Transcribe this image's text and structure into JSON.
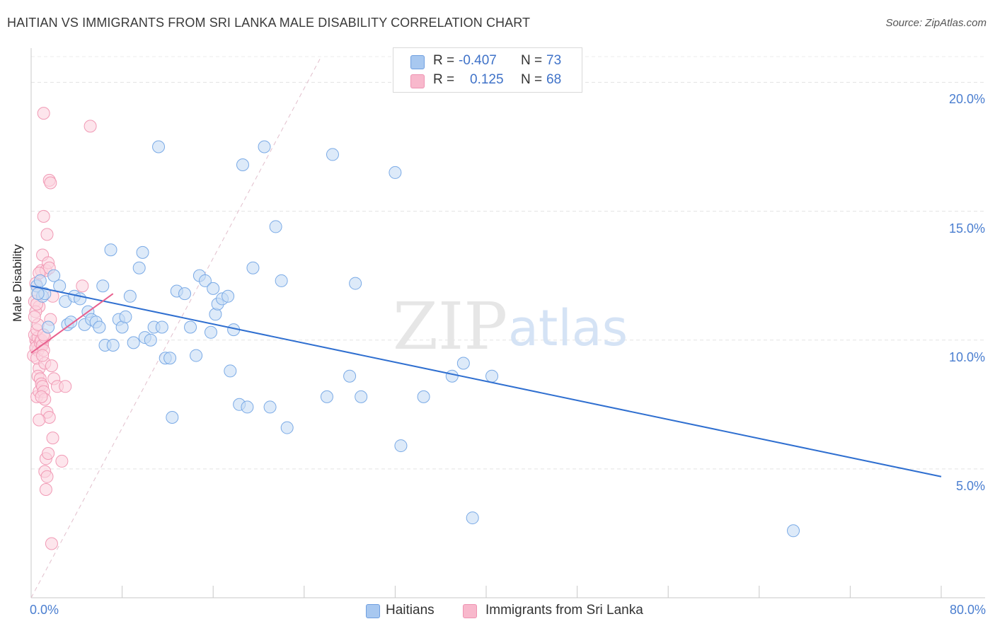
{
  "header": {
    "title": "HAITIAN VS IMMIGRANTS FROM SRI LANKA MALE DISABILITY CORRELATION CHART",
    "source": "Source: ZipAtlas.com"
  },
  "watermark": {
    "zip": "ZIP",
    "atlas": "atlas"
  },
  "legend": {
    "rows": [
      {
        "r_label": "R =",
        "r_value": "-0.407",
        "n_label": "N =",
        "n_value": "73",
        "color": "#a8c8f0"
      },
      {
        "r_label": "R =",
        "r_value": "0.125",
        "n_label": "N =",
        "n_value": "68",
        "color": "#f8b8cc"
      }
    ]
  },
  "chart_data": {
    "type": "scatter",
    "title": "HAITIAN VS IMMIGRANTS FROM SRI LANKA MALE DISABILITY CORRELATION CHART",
    "xlabel": "",
    "ylabel": "Male Disability",
    "xlim": [
      0,
      80
    ],
    "ylim": [
      0,
      21
    ],
    "x_tick_labels": [
      "0.0%",
      "80.0%"
    ],
    "y_ticks": [
      5,
      10,
      15,
      20
    ],
    "y_tick_labels": [
      "5.0%",
      "10.0%",
      "15.0%",
      "20.0%"
    ],
    "grid": true,
    "series": [
      {
        "name": "Haitians",
        "color": "#7aaae6",
        "fill": "#c7dcf5",
        "line_color": "#2f6fd0",
        "trend": {
          "x": [
            0,
            80
          ],
          "y": [
            12.1,
            4.7
          ]
        },
        "points": [
          [
            0.5,
            12.1
          ],
          [
            0.8,
            12.3
          ],
          [
            1.0,
            11.7
          ],
          [
            1.2,
            11.8
          ],
          [
            1.5,
            10.5
          ],
          [
            2.0,
            12.5
          ],
          [
            2.5,
            12.1
          ],
          [
            3.0,
            11.5
          ],
          [
            3.2,
            10.6
          ],
          [
            3.5,
            10.7
          ],
          [
            3.8,
            11.7
          ],
          [
            4.3,
            11.6
          ],
          [
            4.7,
            10.6
          ],
          [
            5.0,
            11.1
          ],
          [
            5.3,
            10.8
          ],
          [
            5.7,
            10.7
          ],
          [
            6.0,
            10.5
          ],
          [
            6.3,
            12.1
          ],
          [
            6.5,
            9.8
          ],
          [
            7.0,
            13.5
          ],
          [
            7.2,
            9.8
          ],
          [
            7.7,
            10.8
          ],
          [
            8.0,
            10.5
          ],
          [
            8.3,
            10.9
          ],
          [
            8.7,
            11.7
          ],
          [
            9.0,
            9.9
          ],
          [
            9.5,
            12.8
          ],
          [
            9.8,
            13.4
          ],
          [
            10.0,
            10.1
          ],
          [
            10.5,
            10.0
          ],
          [
            10.8,
            10.5
          ],
          [
            11.2,
            17.5
          ],
          [
            11.5,
            10.5
          ],
          [
            11.8,
            9.3
          ],
          [
            12.2,
            9.3
          ],
          [
            12.4,
            7.0
          ],
          [
            12.8,
            11.9
          ],
          [
            13.5,
            11.8
          ],
          [
            14.0,
            10.5
          ],
          [
            14.5,
            9.4
          ],
          [
            14.8,
            12.5
          ],
          [
            15.3,
            12.3
          ],
          [
            15.8,
            10.3
          ],
          [
            16.0,
            12.0
          ],
          [
            16.2,
            11.0
          ],
          [
            16.4,
            11.4
          ],
          [
            16.8,
            11.6
          ],
          [
            17.3,
            11.7
          ],
          [
            17.5,
            8.8
          ],
          [
            17.8,
            10.4
          ],
          [
            18.3,
            7.5
          ],
          [
            18.6,
            16.8
          ],
          [
            19.0,
            7.4
          ],
          [
            19.5,
            12.8
          ],
          [
            20.5,
            17.5
          ],
          [
            21.0,
            7.4
          ],
          [
            21.5,
            14.4
          ],
          [
            22.0,
            12.3
          ],
          [
            22.5,
            6.6
          ],
          [
            26.0,
            7.8
          ],
          [
            26.5,
            17.2
          ],
          [
            28.0,
            8.6
          ],
          [
            28.5,
            12.2
          ],
          [
            29.0,
            7.8
          ],
          [
            32.0,
            16.5
          ],
          [
            32.5,
            5.9
          ],
          [
            34.5,
            7.8
          ],
          [
            37.0,
            8.6
          ],
          [
            38.0,
            9.1
          ],
          [
            38.8,
            3.1
          ],
          [
            40.5,
            8.6
          ],
          [
            67.0,
            2.6
          ],
          [
            0.6,
            11.8
          ]
        ]
      },
      {
        "name": "Immigrants from Sri Lanka",
        "color": "#f19ab5",
        "fill": "#fcd3df",
        "line_color": "#e8608e",
        "trend": {
          "x": [
            0,
            7.2
          ],
          "y": [
            9.5,
            11.8
          ]
        },
        "points": [
          [
            0.2,
            9.4
          ],
          [
            0.3,
            11.5
          ],
          [
            0.4,
            10.0
          ],
          [
            0.5,
            9.9
          ],
          [
            0.6,
            9.6
          ],
          [
            0.7,
            8.9
          ],
          [
            0.8,
            10.0
          ],
          [
            0.9,
            9.8
          ],
          [
            1.0,
            9.9
          ],
          [
            0.3,
            10.2
          ],
          [
            0.4,
            9.7
          ],
          [
            0.5,
            9.3
          ],
          [
            0.6,
            10.1
          ],
          [
            0.7,
            11.3
          ],
          [
            0.8,
            9.9
          ],
          [
            0.9,
            10.0
          ],
          [
            1.0,
            9.8
          ],
          [
            1.1,
            9.6
          ],
          [
            1.2,
            10.1
          ],
          [
            0.5,
            7.8
          ],
          [
            0.6,
            8.6
          ],
          [
            0.7,
            8.0
          ],
          [
            0.8,
            8.5
          ],
          [
            0.9,
            8.3
          ],
          [
            1.0,
            8.2
          ],
          [
            1.1,
            8.0
          ],
          [
            1.2,
            9.1
          ],
          [
            0.4,
            11.1
          ],
          [
            0.5,
            11.4
          ],
          [
            0.6,
            11.8
          ],
          [
            0.5,
            10.4
          ],
          [
            0.6,
            10.6
          ],
          [
            0.4,
            12.2
          ],
          [
            0.9,
            12.7
          ],
          [
            1.0,
            13.3
          ],
          [
            1.3,
            12.7
          ],
          [
            1.5,
            13.0
          ],
          [
            1.6,
            12.8
          ],
          [
            1.7,
            10.8
          ],
          [
            1.8,
            9.0
          ],
          [
            1.9,
            11.7
          ],
          [
            1.1,
            14.8
          ],
          [
            1.4,
            14.1
          ],
          [
            1.6,
            16.2
          ],
          [
            1.7,
            16.1
          ],
          [
            1.1,
            18.8
          ],
          [
            5.2,
            18.3
          ],
          [
            2.0,
            8.5
          ],
          [
            2.3,
            8.2
          ],
          [
            3.0,
            8.2
          ],
          [
            1.2,
            7.7
          ],
          [
            1.4,
            7.2
          ],
          [
            1.6,
            7.0
          ],
          [
            0.7,
            6.9
          ],
          [
            1.9,
            6.2
          ],
          [
            1.3,
            5.4
          ],
          [
            1.5,
            5.6
          ],
          [
            2.7,
            5.3
          ],
          [
            1.2,
            4.9
          ],
          [
            1.4,
            4.7
          ],
          [
            1.3,
            4.2
          ],
          [
            1.8,
            2.1
          ],
          [
            4.5,
            12.1
          ],
          [
            1.0,
            9.4
          ],
          [
            0.9,
            7.8
          ],
          [
            0.3,
            10.9
          ],
          [
            0.7,
            12.6
          ],
          [
            1.1,
            10.2
          ]
        ]
      }
    ]
  },
  "bottom_legend": [
    {
      "label": "Haitians",
      "color": "#a8c8f0"
    },
    {
      "label": "Immigrants from Sri Lanka",
      "color": "#f8b8cc"
    }
  ]
}
